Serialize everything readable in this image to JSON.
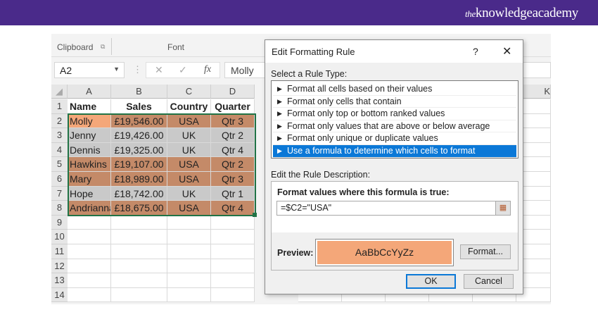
{
  "brand": {
    "logo_prefix": "the",
    "logo_main": "knowledgeacademy",
    "band_color": "#4a2a8a"
  },
  "ribbon": {
    "clipboard": "Clipboard",
    "font": "Font"
  },
  "formula_bar": {
    "name_box": "A2",
    "cancel_icon": "✕",
    "enter_icon": "✓",
    "fx_icon": "fx",
    "value": "Molly"
  },
  "sheet": {
    "columns": [
      "A",
      "B",
      "C",
      "D"
    ],
    "far_column": "K",
    "row_numbers": [
      "1",
      "2",
      "3",
      "4",
      "5",
      "6",
      "7",
      "8",
      "9",
      "10",
      "11",
      "12",
      "13",
      "14"
    ],
    "header": [
      "Name",
      "Sales",
      "Country",
      "Quarter"
    ],
    "rows": [
      {
        "name": "Molly",
        "sales": "£19,546.00",
        "country": "USA",
        "quarter": "Qtr 3",
        "fill": "usa",
        "active": true
      },
      {
        "name": "Jenny",
        "sales": "£19,426.00",
        "country": "UK",
        "quarter": "Qtr 2",
        "fill": "uk"
      },
      {
        "name": "Dennis",
        "sales": "£19,325.00",
        "country": "UK",
        "quarter": "Qtr 4",
        "fill": "uk"
      },
      {
        "name": "Hawkins",
        "sales": "£19,107.00",
        "country": "USA",
        "quarter": "Qtr 2",
        "fill": "usa"
      },
      {
        "name": "Mary",
        "sales": "£18,989.00",
        "country": "USA",
        "quarter": "Qtr 3",
        "fill": "usa"
      },
      {
        "name": "Hope",
        "sales": "£18,742.00",
        "country": "UK",
        "quarter": "Qtr 1",
        "fill": "uk"
      },
      {
        "name": "Andrianna",
        "sales": "£18,675.00",
        "country": "USA",
        "quarter": "Qtr 4",
        "fill": "usa"
      }
    ],
    "colors": {
      "usa": "#c48a68",
      "uk": "#c9c9c9",
      "active": "#f4a779",
      "selection": "#217346"
    }
  },
  "dialog": {
    "title": "Edit Formatting Rule",
    "help": "?",
    "close": "✕",
    "select_label": "Select a Rule Type:",
    "rules": [
      "Format all cells based on their values",
      "Format only cells that contain",
      "Format only top or bottom ranked values",
      "Format only values that are above or below average",
      "Format only unique or duplicate values",
      "Use a formula to determine which cells to format"
    ],
    "selected_rule": 5,
    "edit_label": "Edit the Rule Description:",
    "formula_label": "Format values where this formula is true:",
    "formula": "=$C2=\"USA\"",
    "preview_label": "Preview:",
    "preview_text": "AaBbCcYyZz",
    "preview_color": "#f4a779",
    "format_btn": "Format...",
    "ok": "OK",
    "cancel": "Cancel",
    "accent": "#0b78d7"
  }
}
